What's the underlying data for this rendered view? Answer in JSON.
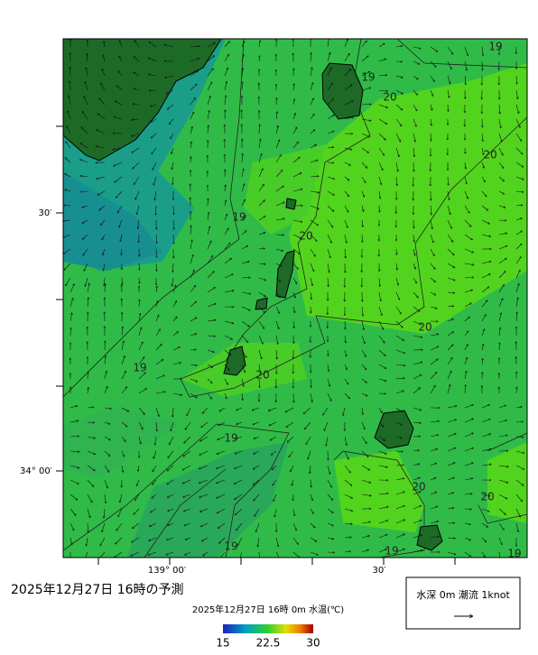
{
  "map": {
    "contour_labels": [
      "19",
      "19",
      "20",
      "20",
      "19",
      "20",
      "20",
      "19",
      "20",
      "19",
      "20",
      "20",
      "19",
      "19",
      "19"
    ]
  },
  "axis": {
    "y_labels": [
      "30′",
      "34° 00′"
    ],
    "x_labels": [
      "139° 00′",
      "30′"
    ]
  },
  "title": "2025年12月27日  16時の予測",
  "legend": {
    "caption": "2025年12月27日  16時 0m 水温(℃)",
    "scale": [
      15,
      22.5,
      30
    ]
  },
  "current_legend": "水深 0m  潮流  1knot"
}
